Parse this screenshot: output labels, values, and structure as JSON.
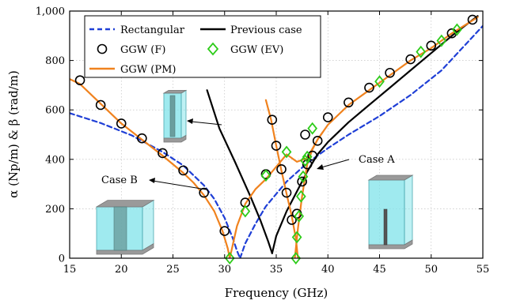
{
  "chart_data": {
    "type": "line",
    "xlabel": "Frequency (GHz)",
    "ylabel": "α (Np/m) & β (rad/m)",
    "xlim": [
      15,
      55
    ],
    "ylim": [
      0,
      1000
    ],
    "x_ticks": [
      "15",
      "20",
      "25",
      "30",
      "35",
      "40",
      "45",
      "50",
      "55"
    ],
    "y_ticks": [
      "0",
      "200",
      "400",
      "600",
      "800",
      "1,000"
    ],
    "grid": true,
    "legend_position": "top-center",
    "colors": {
      "rectangular": "#1f3fd6",
      "previous": "#000000",
      "ggw_f": "#000000",
      "ggw_ev": "#2ecc1a",
      "ggw_pm": "#f0821e",
      "box_fill": "#7fe3ea",
      "box_cap": "#9a9a9a"
    },
    "series": [
      {
        "name": "Rectangular",
        "style": "dashed",
        "segments": [
          {
            "x": [
              15,
              18,
              21,
              24,
              26,
              28,
              29,
              30,
              30.8,
              31.2,
              31.5
            ],
            "y": [
              587,
              547,
              497,
              430,
              375,
              295,
              240,
              163,
              80,
              30,
              0
            ]
          },
          {
            "x": [
              31.5,
              32,
              33,
              34,
              35,
              36,
              38,
              40,
              42,
              45,
              48,
              51,
              55
            ],
            "y": [
              0,
              60,
              140,
              210,
              260,
              310,
              385,
              445,
              500,
              575,
              660,
              760,
              940
            ]
          }
        ]
      },
      {
        "name": "Previous case",
        "style": "solid",
        "segments": [
          {
            "x": [
              28.3,
              29.5,
              31,
              32.5,
              33.5,
              34.2,
              34.6
            ],
            "y": [
              680,
              525,
              390,
              250,
              150,
              70,
              20
            ]
          },
          {
            "x": [
              34.6,
              35,
              36,
              37,
              38,
              39,
              40,
              42,
              44,
              46,
              48,
              50,
              52,
              54.5
            ],
            "y": [
              20,
              90,
              190,
              270,
              350,
              420,
              470,
              550,
              620,
              690,
              760,
              830,
              900,
              980
            ]
          }
        ]
      },
      {
        "name": "GGW (PM)",
        "style": "solid",
        "segments": [
          {
            "x": [
              15,
              16,
              18,
              20,
              22,
              24,
              26,
              27,
              28,
              29,
              29.8,
              30.3,
              30.5
            ],
            "y": [
              725,
              705,
              625,
              545,
              480,
              415,
              345,
              305,
              255,
              190,
              110,
              40,
              0
            ]
          },
          {
            "x": [
              30.5,
              31.2,
              32,
              33,
              34,
              35,
              36,
              37,
              38,
              39,
              40,
              42,
              44,
              46,
              48,
              50,
              52,
              54.5
            ],
            "y": [
              0,
              130,
              220,
              280,
              320,
              370,
              420,
              390,
              405,
              480,
              540,
              620,
              680,
              740,
              800,
              850,
              910,
              975
            ]
          },
          {
            "x": [
              34,
              34.5,
              35,
              35.5,
              36,
              36.5,
              36.9,
              37.1
            ],
            "y": [
              640,
              560,
              455,
              355,
              260,
              170,
              80,
              0
            ]
          },
          {
            "x": [
              36.8,
              37.1,
              37.5,
              38,
              38.5,
              39,
              39.5
            ],
            "y": [
              0,
              120,
              250,
              380,
              440,
              480,
              510
            ]
          }
        ]
      },
      {
        "name": "GGW (F)",
        "marker": "circle",
        "x": [
          16,
          18,
          20,
          22,
          24,
          26,
          28,
          30,
          32,
          34,
          34.6,
          35,
          35.5,
          36,
          36.5,
          37,
          37.5,
          37.8,
          38,
          38.5,
          39,
          40,
          42,
          44,
          46,
          48,
          50,
          52,
          54
        ],
        "y": [
          720,
          620,
          545,
          485,
          425,
          355,
          265,
          110,
          225,
          340,
          560,
          455,
          360,
          265,
          155,
          180,
          310,
          500,
          380,
          415,
          475,
          570,
          630,
          690,
          750,
          805,
          860,
          910,
          965
        ]
      },
      {
        "name": "GGW (EV)",
        "marker": "diamond",
        "x": [
          30.5,
          32,
          34,
          36,
          36.9,
          37,
          37.2,
          37.4,
          37.6,
          37.8,
          38,
          38.5,
          45,
          49,
          51,
          52.5
        ],
        "y": [
          0,
          190,
          335,
          430,
          0,
          85,
          170,
          250,
          330,
          395,
          410,
          525,
          715,
          835,
          880,
          925
        ]
      }
    ],
    "annotations": [
      {
        "label": "Case B"
      },
      {
        "label": "Case A"
      }
    ]
  }
}
